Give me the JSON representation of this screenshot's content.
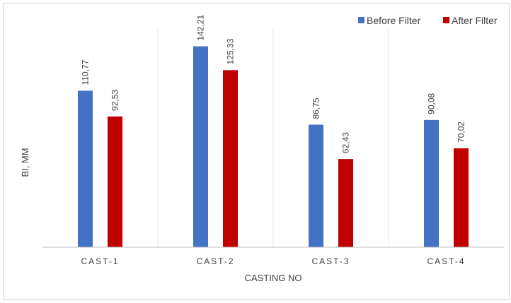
{
  "chart_data": {
    "type": "bar",
    "title": "",
    "xlabel": "CASTING NO",
    "ylabel": "BI, MM",
    "categories": [
      "CAST-1",
      "CAST-2",
      "CAST-3",
      "CAST-4"
    ],
    "series": [
      {
        "name": "Before Filter",
        "color": "#4472c4",
        "values": [
          110.77,
          142.21,
          86.75,
          90.08
        ],
        "labels": [
          "110,77",
          "142,21",
          "86,75",
          "90,08"
        ]
      },
      {
        "name": "After Filter",
        "color": "#c00000",
        "values": [
          92.53,
          125.33,
          62.43,
          70.02
        ],
        "labels": [
          "92,53",
          "125,33",
          "62,43",
          "70,02"
        ]
      }
    ],
    "ylim": [
      0,
      160
    ],
    "grid": false,
    "legend": "top-right"
  }
}
